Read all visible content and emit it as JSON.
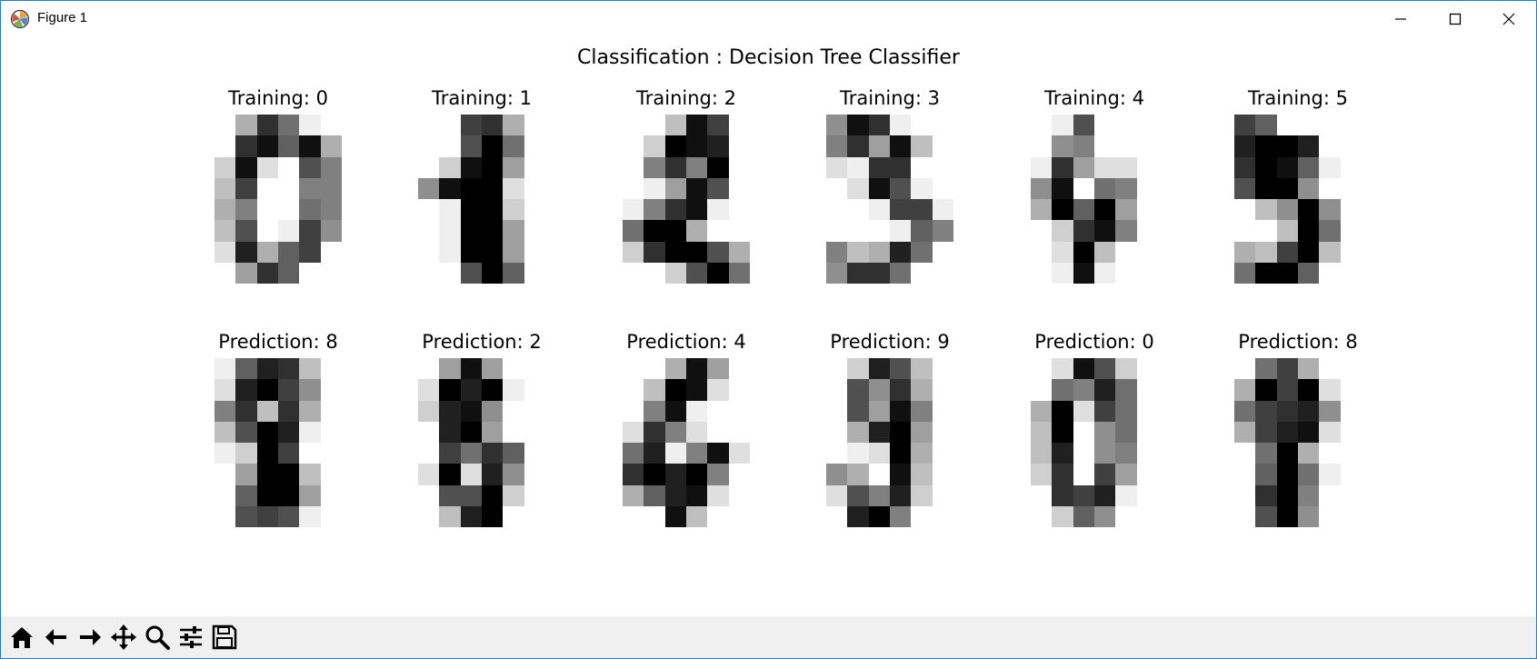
{
  "window": {
    "title": "Figure 1",
    "icon": "matplotlib-icon",
    "controls": [
      "minimize-icon",
      "maximize-icon",
      "close-icon"
    ]
  },
  "figure": {
    "suptitle": "Classification : Decision Tree Classifier",
    "training_row": [
      {
        "title": "Training: 0"
      },
      {
        "title": "Training: 1"
      },
      {
        "title": "Training: 2"
      },
      {
        "title": "Training: 3"
      },
      {
        "title": "Training: 4"
      },
      {
        "title": "Training: 5"
      }
    ],
    "prediction_row": [
      {
        "title": "Prediction: 8"
      },
      {
        "title": "Prediction: 2"
      },
      {
        "title": "Prediction: 4"
      },
      {
        "title": "Prediction: 9"
      },
      {
        "title": "Prediction: 0"
      },
      {
        "title": "Prediction: 8"
      }
    ],
    "colormap": "gray_r",
    "interpolation": "nearest"
  },
  "toolbar": {
    "buttons": [
      "home-icon",
      "back-arrow-icon",
      "forward-arrow-icon",
      "pan-move-icon",
      "zoom-icon",
      "configure-subplots-icon",
      "save-icon"
    ]
  }
}
